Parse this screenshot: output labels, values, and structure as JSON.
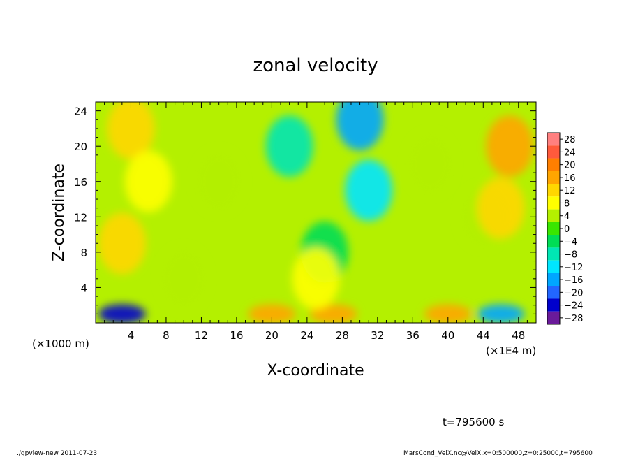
{
  "chart_data": {
    "type": "heatmap",
    "title": "zonal velocity",
    "xlabel": "X-coordinate",
    "ylabel": "Z-coordinate",
    "x_unit_label": "(×1E4 m)",
    "y_unit_label": "(×1000 m)",
    "x_ticks": [
      "4",
      "8",
      "12",
      "16",
      "20",
      "24",
      "28",
      "32",
      "36",
      "40",
      "44",
      "48"
    ],
    "y_ticks": [
      "4",
      "8",
      "12",
      "16",
      "20",
      "24"
    ],
    "xlim": [
      0,
      50
    ],
    "ylim": [
      0,
      25
    ],
    "colorbar": {
      "levels": [
        "28",
        "24",
        "20",
        "16",
        "12",
        "8",
        "4",
        "0",
        "−4",
        "−8",
        "−12",
        "−16",
        "−20",
        "−24",
        "−28"
      ],
      "colors": [
        "#ff8080",
        "#ff5a3c",
        "#ff7f00",
        "#ffa500",
        "#ffd700",
        "#ffff00",
        "#b4f000",
        "#39e600",
        "#00dd55",
        "#00e6b4",
        "#00e6ff",
        "#00a6ff",
        "#2266ff",
        "#0000cc",
        "#6a1a9a"
      ],
      "vmin": -30,
      "vmax": 30
    },
    "field_description_points": [
      {
        "x": 4,
        "z": 22,
        "v": 13
      },
      {
        "x": 6,
        "z": 16,
        "v": 9
      },
      {
        "x": 3,
        "z": 9,
        "v": 12
      },
      {
        "x": 14,
        "z": 16,
        "v": 5
      },
      {
        "x": 22,
        "z": 20,
        "v": -6
      },
      {
        "x": 30,
        "z": 23,
        "v": -16
      },
      {
        "x": 31,
        "z": 15,
        "v": -11
      },
      {
        "x": 26,
        "z": 8,
        "v": -4
      },
      {
        "x": 38,
        "z": 18,
        "v": 3
      },
      {
        "x": 44,
        "z": 12,
        "v": 5
      },
      {
        "x": 47,
        "z": 20,
        "v": 18
      },
      {
        "x": 46,
        "z": 13,
        "v": 13
      },
      {
        "x": 20,
        "z": 1,
        "v": 16
      },
      {
        "x": 27,
        "z": 1,
        "v": 18
      },
      {
        "x": 40,
        "z": 1,
        "v": 15
      },
      {
        "x": 3,
        "z": 1,
        "v": -23
      },
      {
        "x": 46,
        "z": 1,
        "v": -16
      },
      {
        "x": 25,
        "z": 5,
        "v": 9
      },
      {
        "x": 10,
        "z": 5,
        "v": 4
      }
    ]
  },
  "annotations": {
    "time_label": "t=795600 s",
    "footer_left": "./gpview-new   2011-07-23",
    "footer_right": "MarsCond_VelX.nc@VelX,x=0:500000,z=0:25000,t=795600"
  }
}
